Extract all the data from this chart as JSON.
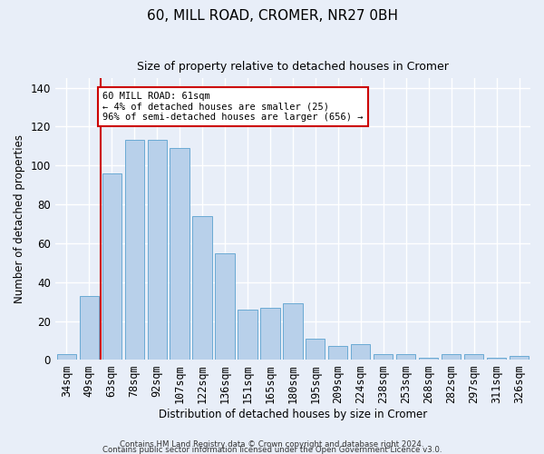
{
  "title1": "60, MILL ROAD, CROMER, NR27 0BH",
  "title2": "Size of property relative to detached houses in Cromer",
  "xlabel": "Distribution of detached houses by size in Cromer",
  "ylabel": "Number of detached properties",
  "footer1": "Contains HM Land Registry data © Crown copyright and database right 2024.",
  "footer2": "Contains public sector information licensed under the Open Government Licence v3.0.",
  "categories": [
    "34sqm",
    "49sqm",
    "63sqm",
    "78sqm",
    "92sqm",
    "107sqm",
    "122sqm",
    "136sqm",
    "151sqm",
    "165sqm",
    "180sqm",
    "195sqm",
    "209sqm",
    "224sqm",
    "238sqm",
    "253sqm",
    "268sqm",
    "282sqm",
    "297sqm",
    "311sqm",
    "326sqm"
  ],
  "values": [
    3,
    33,
    96,
    113,
    113,
    109,
    74,
    55,
    26,
    27,
    29,
    11,
    7,
    8,
    3,
    3,
    1,
    3,
    3,
    1,
    2
  ],
  "bar_color": "#b8d0ea",
  "bar_edge_color": "#6aaad4",
  "highlight_color": "#cc0000",
  "annotation_text": "60 MILL ROAD: 61sqm\n← 4% of detached houses are smaller (25)\n96% of semi-detached houses are larger (656) →",
  "annotation_box_color": "#ffffff",
  "annotation_box_edge": "#cc0000",
  "ylim": [
    0,
    145
  ],
  "background_color": "#e8eef8",
  "grid_color": "#ffffff"
}
